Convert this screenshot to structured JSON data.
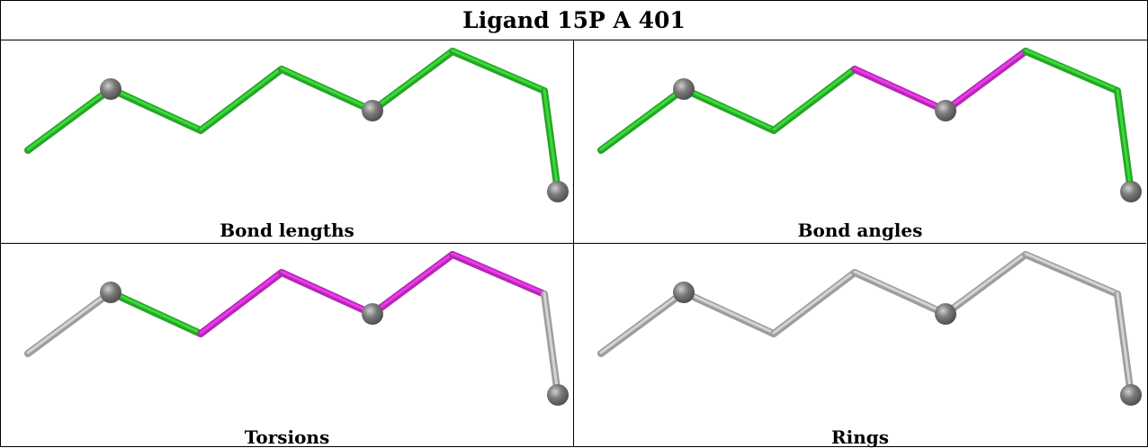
{
  "title": "Ligand 15P A 401",
  "colors": {
    "normal": "#33cc33",
    "outlier": "#dd33dd",
    "not_assessed": "#c4c4c4",
    "atom": "#7a7a7a"
  },
  "panels": [
    {
      "caption": "Bond lengths",
      "bond_colors": [
        "normal",
        "normal",
        "normal",
        "normal",
        "normal",
        "normal",
        "normal"
      ]
    },
    {
      "caption": "Bond angles",
      "bond_colors": [
        "normal",
        "normal",
        "normal",
        "outlier",
        "outlier",
        "normal",
        "normal"
      ]
    },
    {
      "caption": "Torsions",
      "bond_colors": [
        "not_assessed",
        "normal",
        "outlier",
        "outlier",
        "outlier",
        "outlier",
        "not_assessed"
      ]
    },
    {
      "caption": "Rings",
      "bond_colors": [
        "not_assessed",
        "not_assessed",
        "not_assessed",
        "not_assessed",
        "not_assessed",
        "not_assessed",
        "not_assessed"
      ]
    }
  ]
}
